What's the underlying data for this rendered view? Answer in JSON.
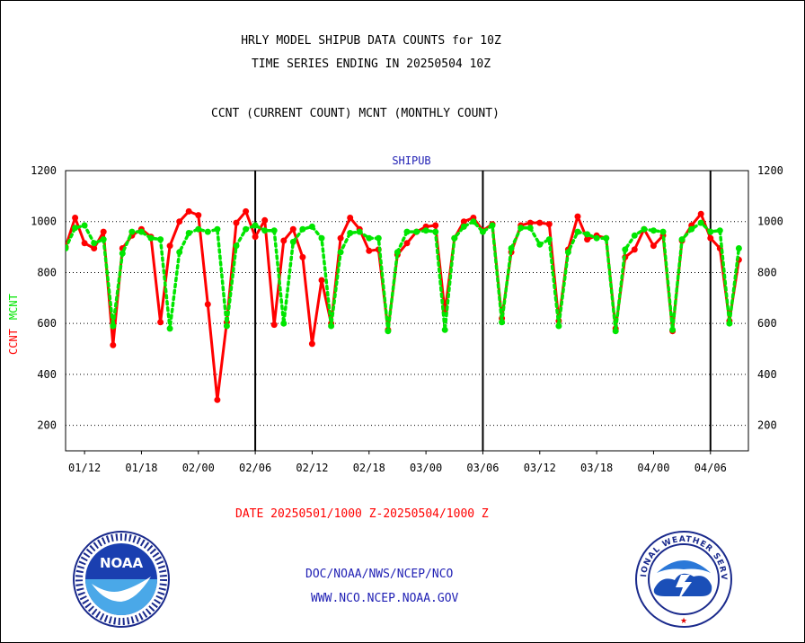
{
  "titles": {
    "line1": "HRLY MODEL SHIPUB DATA COUNTS for 10Z",
    "line2": "TIME SERIES ENDING IN 20250504 10Z",
    "subtitle": "CCNT (CURRENT COUNT) MCNT (MONTHLY COUNT)"
  },
  "footer": {
    "date_range": "DATE 20250501/1000 Z-20250504/1000 Z",
    "org_path": "DOC/NOAA/NWS/NCEP/NCO",
    "website": "WWW.NCO.NCEP.NOAA.GOV"
  },
  "logos": {
    "noaa_text": "NOAA",
    "nws_text": "NATIONAL WEATHER SERVICE"
  },
  "colors": {
    "ccnt": "#ff0000",
    "mcnt": "#00e600",
    "plot_title": "#1f1fb4",
    "grid": "#000000"
  },
  "chart_data": {
    "type": "line",
    "plot_title": "SHIPUB",
    "ylabel_left": [
      "CCNT",
      "MCNT"
    ],
    "ylim": [
      100,
      1200
    ],
    "yticks": [
      200,
      400,
      600,
      800,
      1000,
      1200
    ],
    "grid": "horizontal dotted",
    "x_tick_labels": [
      "01/12",
      "01/18",
      "02/00",
      "02/06",
      "02/12",
      "02/18",
      "03/00",
      "03/06",
      "03/12",
      "03/18",
      "04/00",
      "04/06"
    ],
    "x_tick_hours": [
      2,
      8,
      14,
      20,
      26,
      32,
      38,
      44,
      50,
      56,
      62,
      68
    ],
    "day_boundaries_hours": [
      20,
      44,
      68
    ],
    "x_range_hours": [
      0,
      72
    ],
    "series": [
      {
        "name": "CCNT",
        "values": [
          900,
          1015,
          915,
          895,
          960,
          515,
          895,
          945,
          970,
          940,
          605,
          905,
          1000,
          1040,
          1025,
          675,
          300,
          605,
          995,
          1040,
          940,
          1005,
          595,
          925,
          970,
          860,
          520,
          770,
          600,
          935,
          1015,
          970,
          885,
          890,
          575,
          870,
          915,
          960,
          980,
          985,
          645,
          935,
          1000,
          1015,
          965,
          990,
          620,
          880,
          985,
          995,
          995,
          990,
          610,
          890,
          1020,
          930,
          945,
          935,
          580,
          860,
          890,
          970,
          905,
          945,
          570,
          925,
          985,
          1030,
          935,
          895,
          610,
          850
        ]
      },
      {
        "name": "MCNT",
        "values": [
          895,
          975,
          985,
          915,
          930,
          590,
          875,
          960,
          960,
          935,
          930,
          580,
          880,
          955,
          970,
          960,
          970,
          590,
          905,
          970,
          985,
          965,
          965,
          600,
          920,
          970,
          980,
          935,
          590,
          880,
          955,
          960,
          935,
          935,
          570,
          880,
          960,
          960,
          965,
          960,
          575,
          935,
          980,
          1000,
          960,
          985,
          605,
          895,
          975,
          975,
          910,
          930,
          590,
          880,
          960,
          950,
          935,
          935,
          570,
          890,
          945,
          970,
          965,
          960,
          575,
          930,
          970,
          995,
          960,
          965,
          600,
          895
        ]
      }
    ]
  }
}
